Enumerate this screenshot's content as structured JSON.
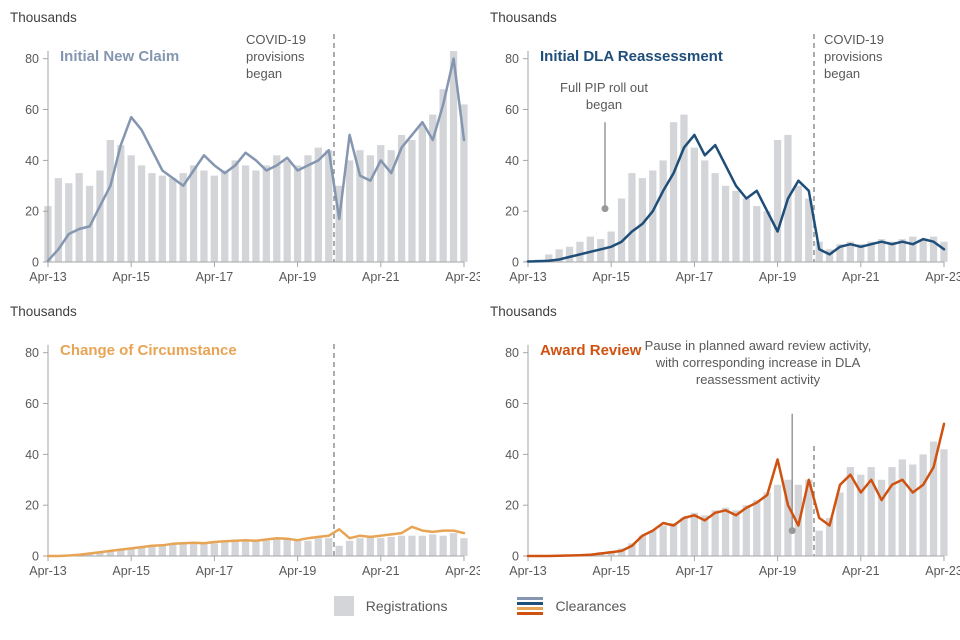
{
  "legend": {
    "registrations_label": "Registrations",
    "clearances_label": "Clearances",
    "registrations_color": "#d3d5d8"
  },
  "chart_data": [
    {
      "type": "bar+line",
      "title": "Initial New Claim",
      "ylabel": "Thousands",
      "color": "#8496b0",
      "ylim": [
        0,
        85
      ],
      "yticks": [
        0,
        20,
        40,
        60,
        80
      ],
      "xticks": [
        "Apr-13",
        "Apr-15",
        "Apr-17",
        "Apr-19",
        "Apr-21",
        "Apr-23"
      ],
      "xtick_index": [
        0,
        8,
        16,
        24,
        32,
        40
      ],
      "x": [
        "Apr-13",
        "Jul-13",
        "Oct-13",
        "Jan-14",
        "Apr-14",
        "Jul-14",
        "Oct-14",
        "Jan-15",
        "Apr-15",
        "Jul-15",
        "Oct-15",
        "Jan-16",
        "Apr-16",
        "Jul-16",
        "Oct-16",
        "Jan-17",
        "Apr-17",
        "Jul-17",
        "Oct-17",
        "Jan-18",
        "Apr-18",
        "Jul-18",
        "Oct-18",
        "Jan-19",
        "Apr-19",
        "Jul-19",
        "Oct-19",
        "Jan-20",
        "Apr-20",
        "Jul-20",
        "Oct-20",
        "Jan-21",
        "Apr-21",
        "Jul-21",
        "Oct-21",
        "Jan-22",
        "Apr-22",
        "Jul-22",
        "Oct-22",
        "Jan-23",
        "Apr-23"
      ],
      "series": [
        {
          "name": "Registrations",
          "type": "bar",
          "values": [
            22,
            33,
            31,
            35,
            30,
            36,
            48,
            46,
            42,
            38,
            35,
            34,
            33,
            35,
            38,
            36,
            34,
            36,
            40,
            38,
            36,
            38,
            42,
            40,
            38,
            42,
            45,
            44,
            30,
            40,
            44,
            42,
            46,
            44,
            50,
            48,
            54,
            58,
            68,
            83,
            62
          ]
        },
        {
          "name": "Clearances",
          "type": "line",
          "values": [
            0.5,
            5,
            11,
            13,
            14,
            22,
            30,
            46,
            57,
            52,
            44,
            36,
            33,
            30,
            36,
            42,
            38,
            35,
            38,
            43,
            40,
            36,
            38,
            41,
            36,
            38,
            40,
            44,
            17,
            50,
            34,
            32,
            40,
            35,
            45,
            50,
            55,
            48,
            62,
            80,
            48
          ]
        }
      ],
      "annotations": [
        {
          "type": "vline",
          "label": "COVID-19 provisions began",
          "x_index": 27.5
        }
      ]
    },
    {
      "type": "bar+line",
      "title": "Initial DLA Reassessment",
      "ylabel": "Thousands",
      "color": "#1f4e79",
      "ylim": [
        0,
        85
      ],
      "yticks": [
        0,
        20,
        40,
        60,
        80
      ],
      "xticks": [
        "Apr-13",
        "Apr-15",
        "Apr-17",
        "Apr-19",
        "Apr-21",
        "Apr-23"
      ],
      "xtick_index": [
        0,
        8,
        16,
        24,
        32,
        40
      ],
      "x": [
        "Apr-13",
        "Jul-13",
        "Oct-13",
        "Jan-14",
        "Apr-14",
        "Jul-14",
        "Oct-14",
        "Jan-15",
        "Apr-15",
        "Jul-15",
        "Oct-15",
        "Jan-16",
        "Apr-16",
        "Jul-16",
        "Oct-16",
        "Jan-17",
        "Apr-17",
        "Jul-17",
        "Oct-17",
        "Jan-18",
        "Apr-18",
        "Jul-18",
        "Oct-18",
        "Jan-19",
        "Apr-19",
        "Jul-19",
        "Oct-19",
        "Jan-20",
        "Apr-20",
        "Jul-20",
        "Oct-20",
        "Jan-21",
        "Apr-21",
        "Jul-21",
        "Oct-21",
        "Jan-22",
        "Apr-22",
        "Jul-22",
        "Oct-22",
        "Jan-23",
        "Apr-23"
      ],
      "series": [
        {
          "name": "Registrations",
          "type": "bar",
          "values": [
            0.5,
            1,
            3,
            5,
            6,
            8,
            10,
            9,
            12,
            25,
            35,
            33,
            36,
            40,
            55,
            58,
            45,
            40,
            35,
            30,
            28,
            25,
            22,
            20,
            48,
            50,
            30,
            25,
            8,
            5,
            7,
            8,
            7,
            8,
            9,
            8,
            9,
            10,
            9,
            10,
            8
          ]
        },
        {
          "name": "Clearances",
          "type": "line",
          "values": [
            0.2,
            0.3,
            0.5,
            1,
            2,
            3,
            4,
            5,
            6,
            8,
            12,
            15,
            20,
            28,
            35,
            45,
            50,
            42,
            46,
            38,
            30,
            25,
            28,
            20,
            12,
            25,
            32,
            28,
            5,
            3,
            6,
            7,
            6,
            7,
            8,
            7,
            8,
            7,
            9,
            8,
            5
          ]
        }
      ],
      "annotations": [
        {
          "type": "vline",
          "label": "COVID-19 provisions began",
          "x_index": 27.5
        },
        {
          "type": "pointer",
          "label": "Full PIP roll out began",
          "x_index": 7.4,
          "y_from": 55,
          "y_to": 21
        }
      ]
    },
    {
      "type": "bar+line",
      "title": "Change of Circumstance",
      "ylabel": "Thousands",
      "color": "#e8a455",
      "ylim": [
        0,
        85
      ],
      "yticks": [
        0,
        20,
        40,
        60,
        80
      ],
      "xticks": [
        "Apr-13",
        "Apr-15",
        "Apr-17",
        "Apr-19",
        "Apr-21",
        "Apr-23"
      ],
      "xtick_index": [
        0,
        8,
        16,
        24,
        32,
        40
      ],
      "x": [
        "Apr-13",
        "Jul-13",
        "Oct-13",
        "Jan-14",
        "Apr-14",
        "Jul-14",
        "Oct-14",
        "Jan-15",
        "Apr-15",
        "Jul-15",
        "Oct-15",
        "Jan-16",
        "Apr-16",
        "Jul-16",
        "Oct-16",
        "Jan-17",
        "Apr-17",
        "Jul-17",
        "Oct-17",
        "Jan-18",
        "Apr-18",
        "Jul-18",
        "Oct-18",
        "Jan-19",
        "Apr-19",
        "Jul-19",
        "Oct-19",
        "Jan-20",
        "Apr-20",
        "Jul-20",
        "Oct-20",
        "Jan-21",
        "Apr-21",
        "Jul-21",
        "Oct-21",
        "Jan-22",
        "Apr-22",
        "Jul-22",
        "Oct-22",
        "Jan-23",
        "Apr-23"
      ],
      "series": [
        {
          "name": "Registrations",
          "type": "bar",
          "values": [
            0,
            0,
            0.3,
            0.5,
            1,
            1.5,
            2,
            2.5,
            3,
            3.5,
            4,
            4,
            4.5,
            5,
            5,
            5.5,
            5,
            5.5,
            6,
            6,
            6.5,
            6,
            6.5,
            7,
            6.5,
            6,
            7,
            7,
            4,
            6,
            7,
            7.5,
            7,
            7.5,
            8,
            8,
            8,
            8.5,
            8,
            9,
            7
          ]
        },
        {
          "name": "Clearances",
          "type": "line",
          "values": [
            0,
            0,
            0.2,
            0.5,
            1,
            1.5,
            2,
            2.5,
            3,
            3.5,
            4,
            4.2,
            4.8,
            5,
            5.2,
            5,
            5.5,
            5.8,
            6,
            6.2,
            6,
            6.5,
            7,
            6.8,
            6.2,
            7,
            7.5,
            8,
            10.5,
            7,
            8,
            7.5,
            8,
            8.5,
            9,
            11.5,
            10,
            9.5,
            10,
            10,
            9
          ]
        }
      ],
      "annotations": [
        {
          "type": "vline",
          "label": "",
          "x_index": 27.5
        }
      ]
    },
    {
      "type": "bar+line",
      "title": "Award Review",
      "ylabel": "Thousands",
      "color": "#cf5211",
      "ylim": [
        0,
        85
      ],
      "yticks": [
        0,
        20,
        40,
        60,
        80
      ],
      "xticks": [
        "Apr-13",
        "Apr-15",
        "Apr-17",
        "Apr-19",
        "Apr-21",
        "Apr-23"
      ],
      "xtick_index": [
        0,
        8,
        16,
        24,
        32,
        40
      ],
      "x": [
        "Apr-13",
        "Jul-13",
        "Oct-13",
        "Jan-14",
        "Apr-14",
        "Jul-14",
        "Oct-14",
        "Jan-15",
        "Apr-15",
        "Jul-15",
        "Oct-15",
        "Jan-16",
        "Apr-16",
        "Jul-16",
        "Oct-16",
        "Jan-17",
        "Apr-17",
        "Jul-17",
        "Oct-17",
        "Jan-18",
        "Apr-18",
        "Jul-18",
        "Oct-18",
        "Jan-19",
        "Apr-19",
        "Jul-19",
        "Oct-19",
        "Jan-20",
        "Apr-20",
        "Jul-20",
        "Oct-20",
        "Jan-21",
        "Apr-21",
        "Jul-21",
        "Oct-21",
        "Jan-22",
        "Apr-22",
        "Jul-22",
        "Oct-22",
        "Jan-23",
        "Apr-23"
      ],
      "series": [
        {
          "name": "Registrations",
          "type": "bar",
          "values": [
            0,
            0,
            0.2,
            0.3,
            0.5,
            0.8,
            1,
            1.5,
            2,
            3,
            5,
            8,
            10,
            12,
            13,
            15,
            17,
            16,
            18,
            19,
            18,
            20,
            22,
            25,
            28,
            30,
            28,
            30,
            10,
            15,
            25,
            35,
            32,
            35,
            30,
            35,
            38,
            36,
            40,
            45,
            42
          ]
        },
        {
          "name": "Clearances",
          "type": "line",
          "values": [
            0,
            0,
            0,
            0.1,
            0.2,
            0.3,
            0.5,
            1,
            1.5,
            2,
            4,
            8,
            10,
            13,
            12,
            15,
            16,
            14,
            17,
            18,
            16,
            19,
            21,
            24,
            38,
            20,
            12,
            30,
            15,
            12,
            28,
            32,
            25,
            30,
            22,
            28,
            30,
            25,
            28,
            35,
            52
          ]
        }
      ],
      "annotations": [
        {
          "type": "vline",
          "label": "",
          "x_index": 27.5
        },
        {
          "type": "pointer",
          "label": "Pause in planned award review activity, with corresponding increase in DLA reassessment activity",
          "x_index": 25.4,
          "y_from": 56,
          "y_to": 10
        }
      ]
    }
  ]
}
